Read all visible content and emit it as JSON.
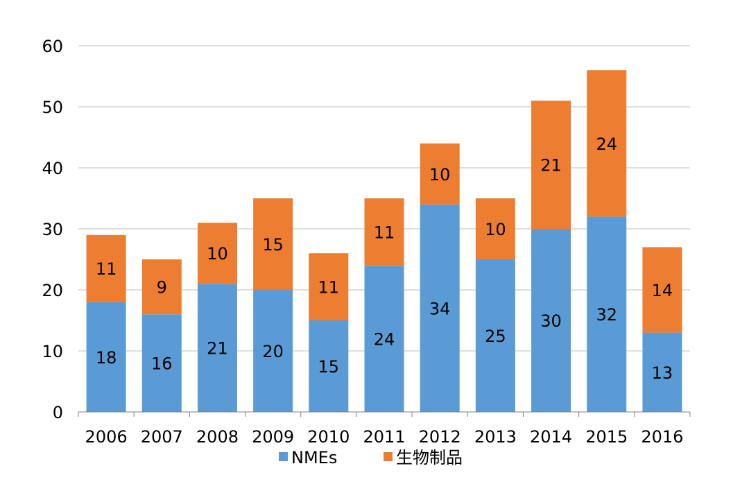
{
  "chart_data": {
    "type": "bar",
    "stacked": true,
    "title": "",
    "xlabel": "",
    "ylabel": "",
    "ylim": [
      0,
      60
    ],
    "yticks": [
      0,
      10,
      20,
      30,
      40,
      50,
      60
    ],
    "grid": true,
    "legend_position": "bottom",
    "categories": [
      "2006",
      "2007",
      "2008",
      "2009",
      "2010",
      "2011",
      "2012",
      "2013",
      "2014",
      "2015",
      "2016"
    ],
    "series": [
      {
        "name": "NMEs",
        "color": "#5B9BD5",
        "values": [
          18,
          16,
          21,
          20,
          15,
          24,
          34,
          25,
          30,
          32,
          13
        ]
      },
      {
        "name": "生物制品",
        "color": "#ED7D31",
        "values": [
          11,
          9,
          10,
          15,
          11,
          11,
          10,
          10,
          21,
          24,
          14
        ]
      }
    ]
  }
}
